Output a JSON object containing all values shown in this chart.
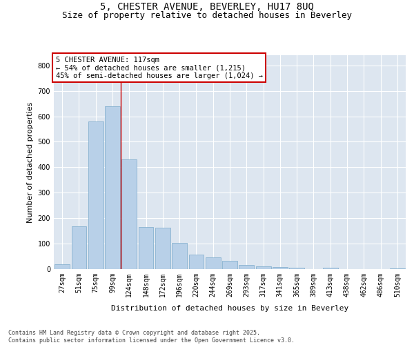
{
  "title_line1": "5, CHESTER AVENUE, BEVERLEY, HU17 8UQ",
  "title_line2": "Size of property relative to detached houses in Beverley",
  "xlabel": "Distribution of detached houses by size in Beverley",
  "ylabel": "Number of detached properties",
  "bar_color": "#b8d0e8",
  "bar_edge_color": "#7aaacb",
  "bg_color": "#dde6f0",
  "grid_color": "#ffffff",
  "categories": [
    "27sqm",
    "51sqm",
    "75sqm",
    "99sqm",
    "124sqm",
    "148sqm",
    "172sqm",
    "196sqm",
    "220sqm",
    "244sqm",
    "269sqm",
    "293sqm",
    "317sqm",
    "341sqm",
    "365sqm",
    "389sqm",
    "413sqm",
    "438sqm",
    "462sqm",
    "486sqm",
    "510sqm"
  ],
  "values": [
    20,
    168,
    580,
    640,
    430,
    165,
    162,
    103,
    57,
    47,
    33,
    17,
    10,
    8,
    5,
    0,
    5,
    1,
    0,
    0,
    4
  ],
  "ylim": [
    0,
    840
  ],
  "yticks": [
    0,
    100,
    200,
    300,
    400,
    500,
    600,
    700,
    800
  ],
  "vline_position": 3.5,
  "vline_color": "#cc0000",
  "annotation_box_text": "5 CHESTER AVENUE: 117sqm\n← 54% of detached houses are smaller (1,215)\n45% of semi-detached houses are larger (1,024) →",
  "footer_text": "Contains HM Land Registry data © Crown copyright and database right 2025.\nContains public sector information licensed under the Open Government Licence v3.0.",
  "title_fontsize": 10,
  "subtitle_fontsize": 9,
  "axis_label_fontsize": 8,
  "tick_fontsize": 7,
  "annotation_fontsize": 7.5,
  "footer_fontsize": 6
}
